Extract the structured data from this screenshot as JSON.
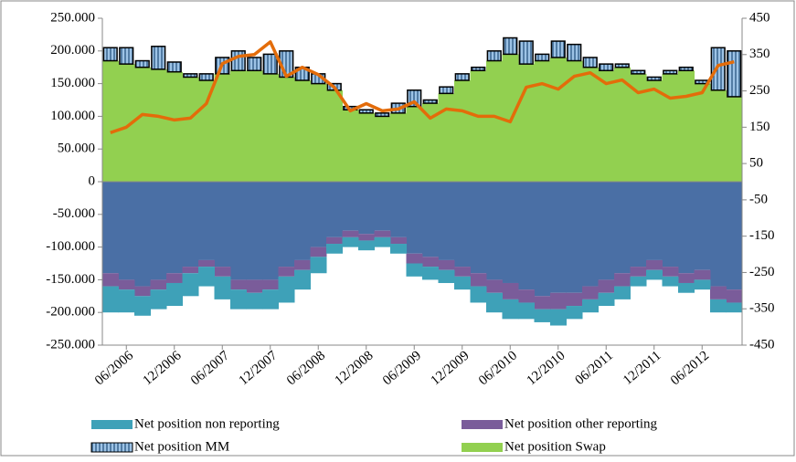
{
  "chart_data": {
    "type": "bar",
    "categories": [
      null,
      "06/2006",
      null,
      null,
      "12/2006",
      null,
      null,
      "06/2007",
      null,
      null,
      "12/2007",
      null,
      null,
      "06/2008",
      null,
      null,
      "12/2008",
      null,
      null,
      "06/2009",
      null,
      null,
      "12/2009",
      null,
      null,
      "06/2010",
      null,
      null,
      "12/2010",
      null,
      null,
      "06/2011",
      null,
      null,
      "12/2011",
      null,
      null,
      "06/2012",
      null,
      null
    ],
    "series": [
      {
        "name": "Net position Swap",
        "type": "area",
        "color": "#92d050",
        "values": [
          185000,
          180000,
          175000,
          172000,
          168000,
          160000,
          155000,
          165000,
          170000,
          170000,
          165000,
          160000,
          155000,
          150000,
          140000,
          110000,
          105000,
          100000,
          105000,
          115000,
          120000,
          135000,
          155000,
          170000,
          185000,
          195000,
          180000,
          185000,
          190000,
          185000,
          175000,
          170000,
          175000,
          165000,
          155000,
          165000,
          170000,
          150000,
          140000,
          130000
        ]
      },
      {
        "name": "Net position MM",
        "type": "bar",
        "color": "#9dc3e6",
        "values": [
          20000,
          25000,
          10000,
          35000,
          15000,
          5000,
          10000,
          25000,
          30000,
          20000,
          30000,
          40000,
          20000,
          15000,
          10000,
          5000,
          5000,
          5000,
          15000,
          25000,
          5000,
          10000,
          10000,
          5000,
          15000,
          25000,
          35000,
          10000,
          25000,
          25000,
          15000,
          10000,
          5000,
          5000,
          5000,
          5000,
          5000,
          5000,
          65000,
          70000
        ]
      },
      {
        "type": "area",
        "color": "#4a6fa5",
        "values": [
          -140000,
          -150000,
          -160000,
          -150000,
          -140000,
          -130000,
          -120000,
          -130000,
          -150000,
          -150000,
          -150000,
          -130000,
          -120000,
          -100000,
          -85000,
          -75000,
          -80000,
          -75000,
          -85000,
          -110000,
          -115000,
          -120000,
          -130000,
          -140000,
          -150000,
          -155000,
          -165000,
          -175000,
          -170000,
          -170000,
          -160000,
          -150000,
          -140000,
          -130000,
          -120000,
          -130000,
          -140000,
          -135000,
          -160000,
          -165000
        ]
      },
      {
        "name": "Net position other reporting",
        "type": "area",
        "color": "#7a5c9a",
        "values": [
          -20000,
          -15000,
          -15000,
          -15000,
          -15000,
          -10000,
          -10000,
          -15000,
          -15000,
          -20000,
          -15000,
          -15000,
          -15000,
          -15000,
          -10000,
          -10000,
          -10000,
          -10000,
          -10000,
          -15000,
          -15000,
          -15000,
          -15000,
          -20000,
          -20000,
          -25000,
          -20000,
          -20000,
          -25000,
          -20000,
          -20000,
          -20000,
          -20000,
          -15000,
          -15000,
          -15000,
          -15000,
          -15000,
          -20000,
          -20000
        ]
      },
      {
        "name": "Net position non reporting",
        "type": "area",
        "color": "#3ea1b8",
        "values": [
          -40000,
          -35000,
          -30000,
          -30000,
          -35000,
          -35000,
          -30000,
          -35000,
          -30000,
          -25000,
          -30000,
          -40000,
          -30000,
          -25000,
          -15000,
          -15000,
          -15000,
          -15000,
          -15000,
          -20000,
          -20000,
          -20000,
          -20000,
          -25000,
          -30000,
          -30000,
          -25000,
          -20000,
          -25000,
          -20000,
          -20000,
          -20000,
          -20000,
          -15000,
          -15000,
          -15000,
          -15000,
          -15000,
          -20000,
          -15000
        ]
      },
      {
        "type": "line",
        "axis": "y2",
        "color": "#e36c0a",
        "values": [
          135,
          150,
          185,
          180,
          170,
          175,
          215,
          325,
          345,
          350,
          385,
          290,
          315,
          295,
          260,
          195,
          215,
          195,
          200,
          220,
          175,
          200,
          195,
          180,
          180,
          165,
          260,
          270,
          255,
          290,
          300,
          270,
          280,
          245,
          255,
          230,
          235,
          245,
          320,
          330
        ]
      }
    ],
    "ylim": [
      -250000,
      250000
    ],
    "yticks": [
      {
        "value": -250000,
        "label": "-250.000"
      },
      {
        "value": -200000,
        "label": "-200.000"
      },
      {
        "value": -150000,
        "label": "-150.000"
      },
      {
        "value": -100000,
        "label": "-100.000"
      },
      {
        "value": -50000,
        "label": "-50.000"
      },
      0,
      {
        "value": 50000,
        "label": "50.000"
      },
      {
        "value": 100000,
        "label": "100.000"
      },
      {
        "value": 150000,
        "label": "150.000"
      },
      {
        "value": 200000,
        "label": "200.000"
      },
      {
        "value": 250000,
        "label": "250.000"
      }
    ],
    "y2lim": [
      -450,
      450
    ],
    "y2ticks": [
      -450,
      -350,
      -250,
      -150,
      -50,
      50,
      150,
      250,
      350,
      450
    ]
  }
}
